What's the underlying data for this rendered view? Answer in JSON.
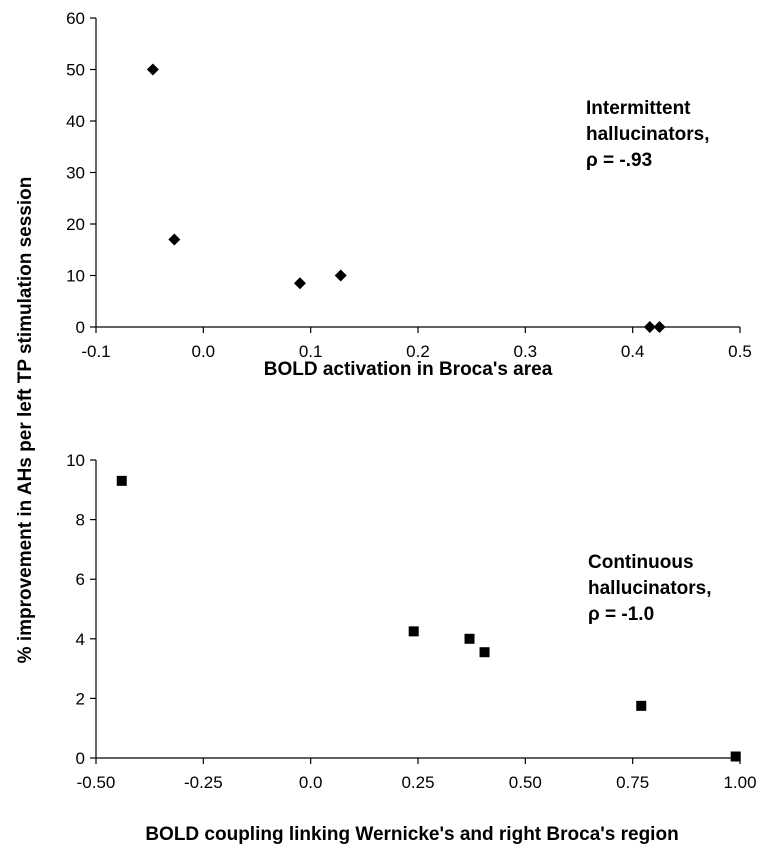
{
  "shared_ylabel": "% improvement in AHs per left TP stimulation session",
  "chart_data": [
    {
      "type": "scatter",
      "title": "",
      "xlabel": "BOLD activation in Broca's area",
      "ylabel": "% improvement in AHs per left TP stimulation session",
      "xlim": [
        -0.1,
        0.5
      ],
      "ylim": [
        0,
        60
      ],
      "xticks": [
        -0.1,
        0.0,
        0.1,
        0.2,
        0.3,
        0.4,
        0.5
      ],
      "xtick_labels": [
        "-0.1",
        "0.0",
        "0.1",
        "0.2",
        "0.3",
        "0.4",
        "0.5"
      ],
      "yticks": [
        0,
        10,
        20,
        30,
        40,
        50,
        60
      ],
      "ytick_labels": [
        "0",
        "10",
        "20",
        "30",
        "40",
        "50",
        "60"
      ],
      "marker": "diamond",
      "grid": false,
      "legend": "none",
      "points": [
        {
          "x": -0.047,
          "y": 50
        },
        {
          "x": -0.027,
          "y": 17
        },
        {
          "x": 0.09,
          "y": 8.5
        },
        {
          "x": 0.128,
          "y": 10
        },
        {
          "x": 0.416,
          "y": 0
        },
        {
          "x": 0.425,
          "y": 0
        }
      ],
      "annotation": [
        "Intermittent",
        "hallucinators,",
        "ρ = -.93"
      ]
    },
    {
      "type": "scatter",
      "title": "",
      "xlabel": "BOLD coupling linking Wernicke's and right Broca's region",
      "ylabel": "% improvement in AHs per left TP stimulation session",
      "xlim": [
        -0.5,
        1.0
      ],
      "ylim": [
        0,
        10
      ],
      "xticks": [
        -0.5,
        -0.25,
        0.0,
        0.25,
        0.5,
        0.75,
        1.0
      ],
      "xtick_labels": [
        "-0.50",
        "-0.25",
        "0.0",
        "0.25",
        "0.50",
        "0.75",
        "1.00"
      ],
      "yticks": [
        0,
        2,
        4,
        6,
        8,
        10
      ],
      "ytick_labels": [
        "0",
        "2",
        "4",
        "6",
        "8",
        "10"
      ],
      "marker": "square",
      "grid": false,
      "legend": "none",
      "points": [
        {
          "x": -0.44,
          "y": 9.3
        },
        {
          "x": 0.24,
          "y": 4.25
        },
        {
          "x": 0.37,
          "y": 4.0
        },
        {
          "x": 0.405,
          "y": 3.55
        },
        {
          "x": 0.77,
          "y": 1.75
        },
        {
          "x": 0.99,
          "y": 0.05
        }
      ],
      "annotation": [
        "Continuous",
        "hallucinators,",
        " ρ = -1.0"
      ]
    }
  ]
}
